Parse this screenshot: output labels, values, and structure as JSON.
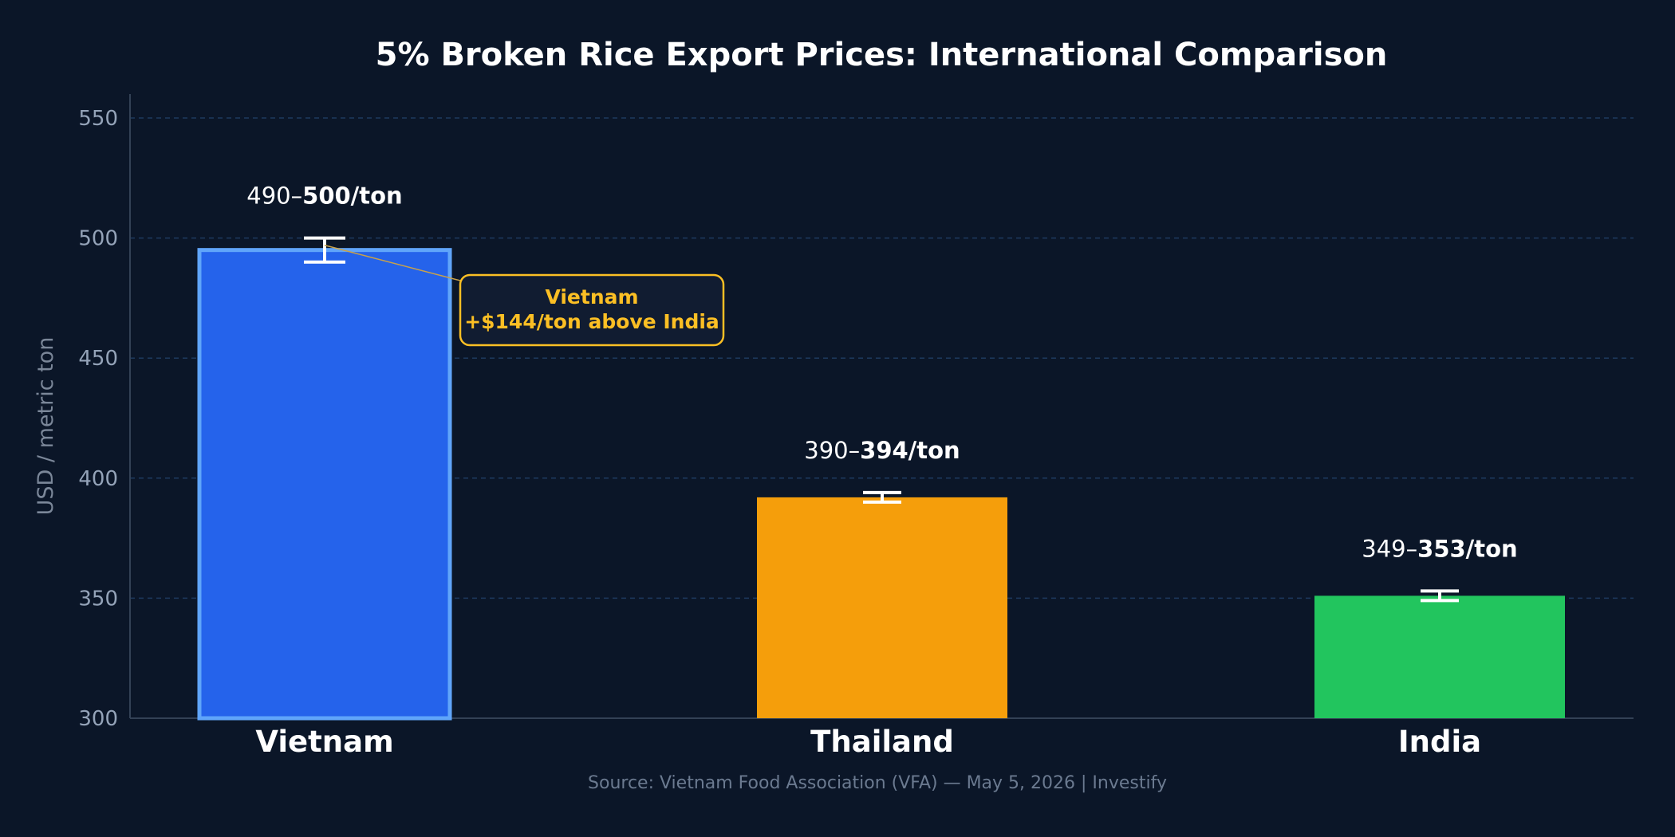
{
  "chart_data": {
    "type": "bar",
    "title": "5% Broken Rice Export Prices: International Comparison",
    "ylabel": "USD / metric ton",
    "ylim": [
      300,
      560
    ],
    "yticks": [
      300,
      350,
      400,
      450,
      500,
      550
    ],
    "grid": true,
    "categories": [
      "Vietnam",
      "Thailand",
      "India"
    ],
    "values": [
      495,
      392,
      351
    ],
    "low": [
      490,
      390,
      349
    ],
    "high": [
      500,
      394,
      353
    ],
    "colors": [
      "#2563eb",
      "#f59e0b",
      "#22c55e"
    ],
    "highlight_border": "#60a5fa",
    "labels": [
      {
        "low_text": "490–",
        "high_text": "500/ton"
      },
      {
        "low_text": "390–",
        "high_text": "394/ton"
      },
      {
        "low_text": "349–",
        "high_text": "353/ton"
      }
    ],
    "annotation": {
      "line1": "Vietnam",
      "line2": "+$144/ton above India",
      "color": "#fbbf24"
    },
    "source": "Source: Vietnam Food Association (VFA) — May 5, 2026  |  Investify"
  }
}
